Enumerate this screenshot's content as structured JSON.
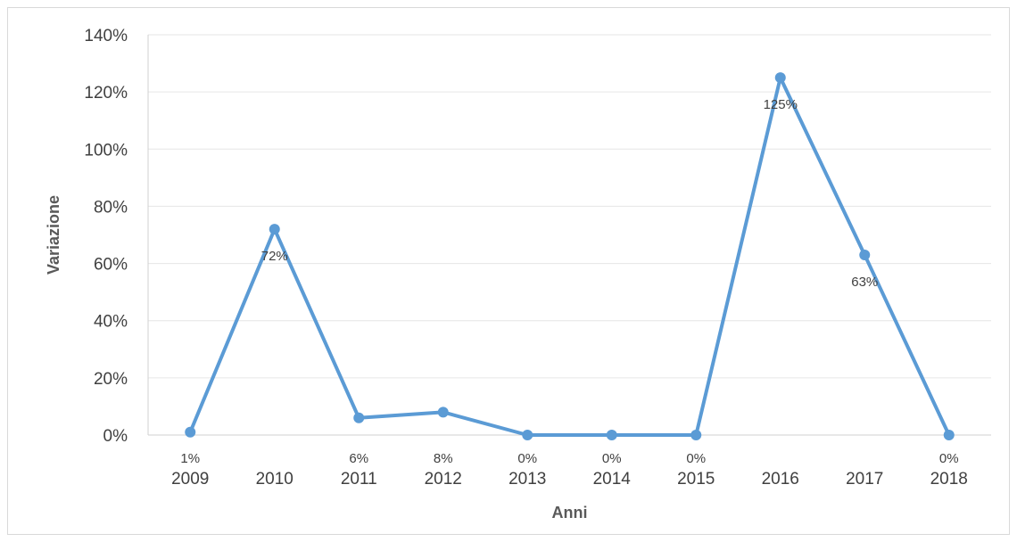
{
  "chart_data": {
    "type": "line",
    "title": "",
    "xlabel": "Anni",
    "ylabel": "Variazione",
    "ylim": [
      0,
      140
    ],
    "y_ticks": [
      0,
      20,
      40,
      60,
      80,
      100,
      120,
      140
    ],
    "y_tick_format": "%",
    "grid": true,
    "legend": "none",
    "categories": [
      "2009",
      "2010",
      "2011",
      "2012",
      "2013",
      "2014",
      "2015",
      "2016",
      "2017",
      "2018"
    ],
    "series": [
      {
        "values": [
          1,
          72,
          6,
          8,
          0,
          0,
          0,
          125,
          63,
          0
        ],
        "data_labels": [
          "1%",
          "72%",
          "6%",
          "8%",
          "0%",
          "0%",
          "0%",
          "125%",
          "63%",
          "0%"
        ],
        "color": "#5b9bd5"
      }
    ]
  }
}
